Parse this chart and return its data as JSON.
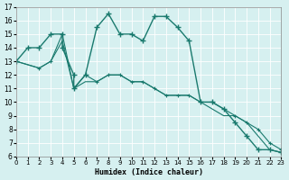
{
  "xlabel": "Humidex (Indice chaleur)",
  "xlim": [
    0,
    23
  ],
  "ylim": [
    6,
    17
  ],
  "xticks": [
    0,
    1,
    2,
    3,
    4,
    5,
    6,
    7,
    8,
    9,
    10,
    11,
    12,
    13,
    14,
    15,
    16,
    17,
    18,
    19,
    20,
    21,
    22,
    23
  ],
  "yticks": [
    6,
    7,
    8,
    9,
    10,
    11,
    12,
    13,
    14,
    15,
    16,
    17
  ],
  "bg_color": "#d6f0f0",
  "line_color": "#1a7a6e",
  "line1_x": [
    0,
    1,
    2,
    3,
    4,
    4,
    5,
    5,
    6,
    7,
    8,
    9,
    10,
    11,
    12,
    13,
    14,
    15,
    16,
    17,
    18,
    19,
    20,
    21,
    22,
    23
  ],
  "line1_y": [
    13,
    14,
    14,
    15,
    15,
    14,
    12,
    11,
    12,
    15.5,
    16.5,
    15,
    15,
    14.5,
    16.3,
    16.3,
    15.5,
    14.5,
    10,
    10,
    9.5,
    8.5,
    7.5,
    6.5,
    6.5,
    6.3
  ],
  "line2_x": [
    0,
    2,
    3,
    4,
    5,
    6,
    7,
    8,
    9,
    10,
    11,
    12,
    13,
    14,
    15,
    16,
    17,
    18,
    19,
    20,
    21,
    22,
    23
  ],
  "line2_y": [
    13,
    12.5,
    13,
    15,
    11,
    12,
    11.5,
    12,
    12,
    11.5,
    11.5,
    11,
    10.5,
    10.5,
    10.5,
    10,
    10,
    9.5,
    9,
    8.5,
    8,
    7,
    6.5
  ],
  "line3_x": [
    0,
    2,
    3,
    4,
    5,
    6,
    7,
    8,
    9,
    10,
    11,
    12,
    13,
    14,
    15,
    16,
    17,
    18,
    19,
    20,
    21,
    22,
    23
  ],
  "line3_y": [
    13,
    12.5,
    13,
    14.5,
    11,
    11.5,
    11.5,
    12,
    12,
    11.5,
    11.5,
    11,
    10.5,
    10.5,
    10.5,
    10,
    9.5,
    9,
    9,
    8.5,
    7.5,
    6.5,
    6.3
  ]
}
